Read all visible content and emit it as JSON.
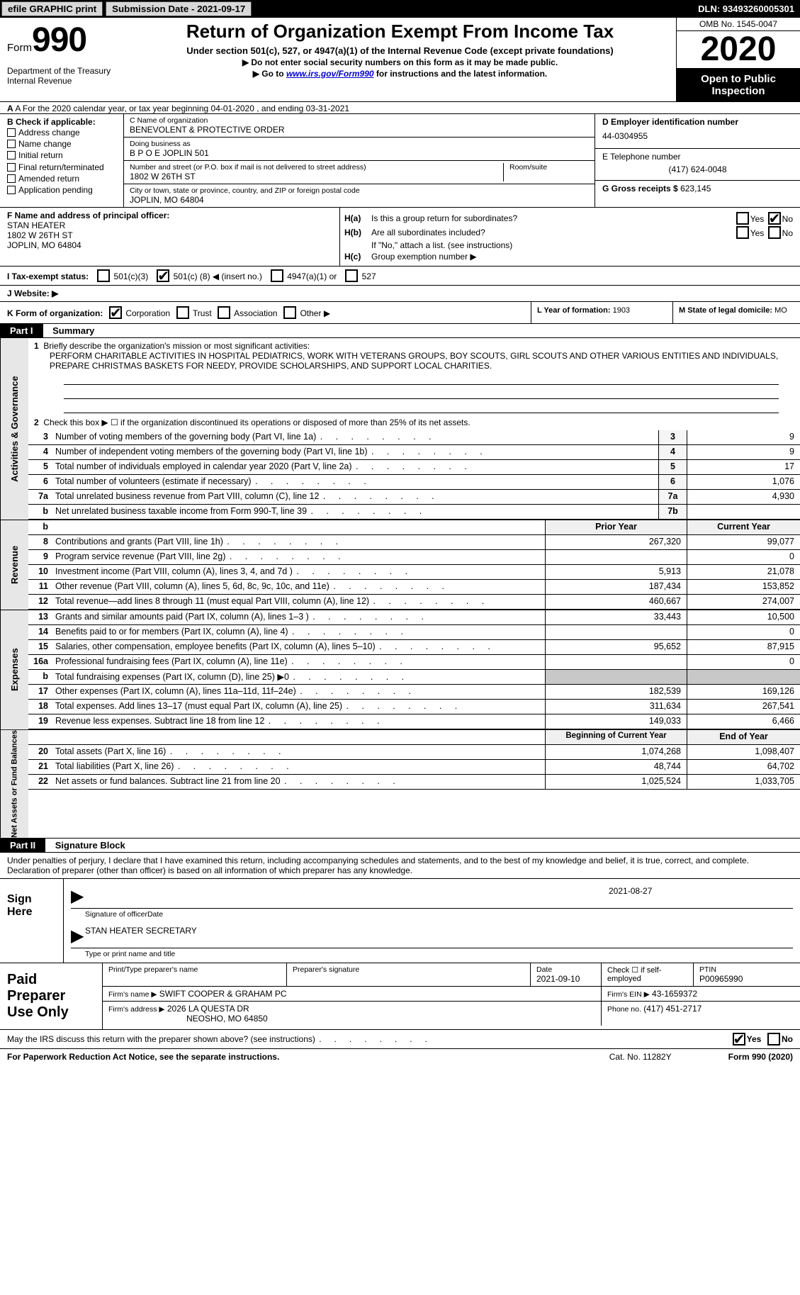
{
  "topbar": {
    "efile_label": "efile GRAPHIC print",
    "submission_label": "Submission Date - 2021-09-17",
    "dln_label": "DLN: 93493260005301"
  },
  "head": {
    "form_text": "Form",
    "form_no": "990",
    "dept": "Department of the Treasury\nInternal Revenue",
    "title": "Return of Organization Exempt From Income Tax",
    "sub1": "Under section 501(c), 527, or 4947(a)(1) of the Internal Revenue Code (except private foundations)",
    "sub2": "▶ Do not enter social security numbers on this form as it may be made public.",
    "sub3_pre": "▶ Go to ",
    "sub3_link": "www.irs.gov/Form990",
    "sub3_post": " for instructions and the latest information.",
    "omb": "OMB No. 1545-0047",
    "year": "2020",
    "inspect": "Open to Public Inspection"
  },
  "row_a": "A  For the 2020 calendar year, or tax year beginning 04-01-2020    , and ending 03-31-2021",
  "b": {
    "header": "B Check if applicable:",
    "address_change": "Address change",
    "name_change": "Name change",
    "initial_return": "Initial return",
    "final_return": "Final return/terminated",
    "amended_return": "Amended return",
    "application_pending": "Application pending"
  },
  "c": {
    "name_lbl": "C Name of organization",
    "name": "BENEVOLENT & PROTECTIVE ORDER",
    "dba_lbl": "Doing business as",
    "dba": "B P O E JOPLIN 501",
    "street_lbl": "Number and street (or P.O. box if mail is not delivered to street address)",
    "street": "1802 W 26TH ST",
    "room_lbl": "Room/suite",
    "city_lbl": "City or town, state or province, country, and ZIP or foreign postal code",
    "city": "JOPLIN, MO  64804"
  },
  "d": {
    "ein_lbl": "D Employer identification number",
    "ein": "44-0304955",
    "tel_lbl": "E Telephone number",
    "tel": "(417) 624-0048",
    "gross_lbl": "G Gross receipts $",
    "gross": "623,145"
  },
  "f": {
    "lbl": "F Name and address of principal officer:",
    "name": "STAN HEATER",
    "street": "1802 W 26TH ST",
    "city": "JOPLIN, MO  64804"
  },
  "h": {
    "a_lbl": "H(a)",
    "a_text": "Is this a group return for subordinates?",
    "b_lbl": "H(b)",
    "b_text": "Are all subordinates included?",
    "note": "If \"No,\" attach a list. (see instructions)",
    "c_lbl": "H(c)",
    "c_text": "Group exemption number ▶",
    "yes": "Yes",
    "no": "No"
  },
  "i": {
    "lbl": "I   Tax-exempt status:",
    "c3": "501(c)(3)",
    "c_pre": "501(c) (",
    "c_num": "8",
    "c_post": ") ◀ (insert no.)",
    "a4947": "4947(a)(1) or",
    "s527": "527"
  },
  "j": {
    "lbl": "J   Website: ▶"
  },
  "k": {
    "lbl": "K Form of organization:",
    "corp": "Corporation",
    "trust": "Trust",
    "assoc": "Association",
    "other": "Other ▶"
  },
  "l": {
    "lbl": "L Year of formation:",
    "val": "1903"
  },
  "m": {
    "lbl": "M State of legal domicile:",
    "val": "MO"
  },
  "part1": {
    "hdr": "Part I",
    "title": "Summary"
  },
  "summary": {
    "line1_lbl": "Briefly describe the organization's mission or most significant activities:",
    "mission": "PERFORM CHARITABLE ACTIVITIES IN HOSPITAL PEDIATRICS, WORK WITH VETERANS GROUPS, BOY SCOUTS, GIRL SCOUTS AND OTHER VARIOUS ENTITIES AND INDIVIDUALS, PREPARE CHRISTMAS BASKETS FOR NEEDY, PROVIDE SCHOLARSHIPS, AND SUPPORT LOCAL CHARITIES.",
    "line2": "Check this box ▶ ☐  if the organization discontinued its operations or disposed of more than 25% of its net assets.",
    "side_act": "Activities & Governance",
    "side_rev": "Revenue",
    "side_exp": "Expenses",
    "side_net": "Net Assets or Fund Balances",
    "prior_hdr": "Prior Year",
    "current_hdr": "Current Year",
    "beg_hdr": "Beginning of Current Year",
    "end_hdr": "End of Year",
    "rows_gov": [
      {
        "n": "3",
        "d": "Number of voting members of the governing body (Part VI, line 1a)",
        "b": "3",
        "v": "9"
      },
      {
        "n": "4",
        "d": "Number of independent voting members of the governing body (Part VI, line 1b)",
        "b": "4",
        "v": "9"
      },
      {
        "n": "5",
        "d": "Total number of individuals employed in calendar year 2020 (Part V, line 2a)",
        "b": "5",
        "v": "17"
      },
      {
        "n": "6",
        "d": "Total number of volunteers (estimate if necessary)",
        "b": "6",
        "v": "1,076"
      },
      {
        "n": "7a",
        "d": "Total unrelated business revenue from Part VIII, column (C), line 12",
        "b": "7a",
        "v": "4,930"
      },
      {
        "n": "b",
        "d": "Net unrelated business taxable income from Form 990-T, line 39",
        "b": "7b",
        "v": ""
      }
    ],
    "rows_rev": [
      {
        "n": "8",
        "d": "Contributions and grants (Part VIII, line 1h)",
        "p": "267,320",
        "c": "99,077"
      },
      {
        "n": "9",
        "d": "Program service revenue (Part VIII, line 2g)",
        "p": "",
        "c": "0"
      },
      {
        "n": "10",
        "d": "Investment income (Part VIII, column (A), lines 3, 4, and 7d )",
        "p": "5,913",
        "c": "21,078"
      },
      {
        "n": "11",
        "d": "Other revenue (Part VIII, column (A), lines 5, 6d, 8c, 9c, 10c, and 11e)",
        "p": "187,434",
        "c": "153,852"
      },
      {
        "n": "12",
        "d": "Total revenue—add lines 8 through 11 (must equal Part VIII, column (A), line 12)",
        "p": "460,667",
        "c": "274,007"
      }
    ],
    "rows_exp": [
      {
        "n": "13",
        "d": "Grants and similar amounts paid (Part IX, column (A), lines 1–3 )",
        "p": "33,443",
        "c": "10,500"
      },
      {
        "n": "14",
        "d": "Benefits paid to or for members (Part IX, column (A), line 4)",
        "p": "",
        "c": "0"
      },
      {
        "n": "15",
        "d": "Salaries, other compensation, employee benefits (Part IX, column (A), lines 5–10)",
        "p": "95,652",
        "c": "87,915"
      },
      {
        "n": "16a",
        "d": "Professional fundraising fees (Part IX, column (A), line 11e)",
        "p": "",
        "c": "0"
      },
      {
        "n": "b",
        "d": "Total fundraising expenses (Part IX, column (D), line 25) ▶0",
        "p": "__shade__",
        "c": "__shade__"
      },
      {
        "n": "17",
        "d": "Other expenses (Part IX, column (A), lines 11a–11d, 11f–24e)",
        "p": "182,539",
        "c": "169,126"
      },
      {
        "n": "18",
        "d": "Total expenses. Add lines 13–17 (must equal Part IX, column (A), line 25)",
        "p": "311,634",
        "c": "267,541"
      },
      {
        "n": "19",
        "d": "Revenue less expenses. Subtract line 18 from line 12",
        "p": "149,033",
        "c": "6,466"
      }
    ],
    "rows_net": [
      {
        "n": "20",
        "d": "Total assets (Part X, line 16)",
        "p": "1,074,268",
        "c": "1,098,407"
      },
      {
        "n": "21",
        "d": "Total liabilities (Part X, line 26)",
        "p": "48,744",
        "c": "64,702"
      },
      {
        "n": "22",
        "d": "Net assets or fund balances. Subtract line 21 from line 20",
        "p": "1,025,524",
        "c": "1,033,705"
      }
    ]
  },
  "part2": {
    "hdr": "Part II",
    "title": "Signature Block"
  },
  "sig": {
    "declare": "Under penalties of perjury, I declare that I have examined this return, including accompanying schedules and statements, and to the best of my knowledge and belief, it is true, correct, and complete. Declaration of preparer (other than officer) is based on all information of which preparer has any knowledge.",
    "sign_here": "Sign Here",
    "date": "2021-08-27",
    "sig_lbl": "Signature of officer",
    "date_lbl": "Date",
    "name": "STAN HEATER  SECRETARY",
    "name_lbl": "Type or print name and title"
  },
  "prep": {
    "header": "Paid Preparer Use Only",
    "r1": {
      "c1_lbl": "Print/Type preparer's name",
      "c2_lbl": "Preparer's signature",
      "c3_lbl": "Date",
      "c3": "2021-09-10",
      "c4": "Check ☐  if self-employed",
      "c5_lbl": "PTIN",
      "c5": "P00965990"
    },
    "r2": {
      "c1_lbl": "Firm's name    ▶",
      "c1": "SWIFT COOPER & GRAHAM PC",
      "c2_lbl": "Firm's EIN ▶",
      "c2": "43-1659372"
    },
    "r3": {
      "c1_lbl": "Firm's address ▶",
      "c1a": "2026 LA QUESTA DR",
      "c1b": "NEOSHO, MO  64850",
      "c2_lbl": "Phone no.",
      "c2": "(417) 451-2717"
    }
  },
  "may": {
    "text": "May the IRS discuss this return with the preparer shown above? (see instructions)",
    "yes": "Yes",
    "no": "No"
  },
  "footer": {
    "left": "For Paperwork Reduction Act Notice, see the separate instructions.",
    "mid": "Cat. No. 11282Y",
    "right": "Form 990 (2020)"
  },
  "colors": {
    "black": "#000000",
    "shade": "#c8c8c8",
    "grey_btn": "#d8d8d8",
    "link": "#0000cc"
  }
}
